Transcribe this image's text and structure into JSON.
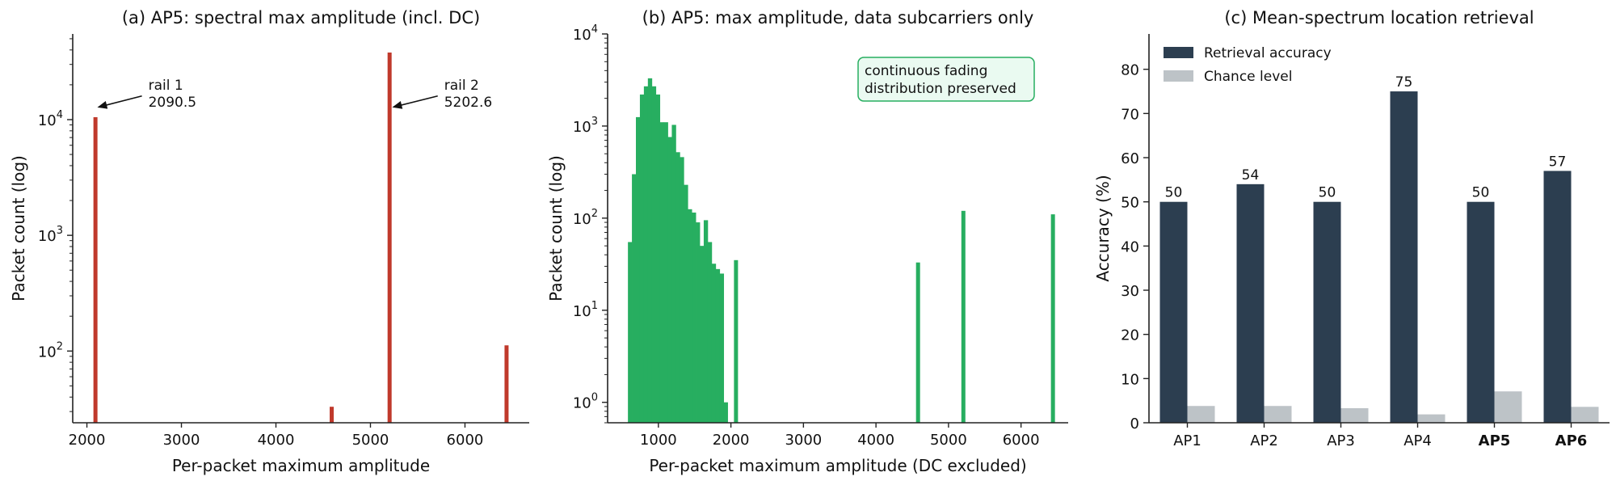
{
  "chart_data": [
    {
      "id": "a",
      "type": "bar",
      "title": "(a) AP5: spectral max amplitude (incl. DC)",
      "xlabel": "Per-packet maximum amplitude",
      "ylabel": "Packet count (log)",
      "yscale": "log",
      "xlim": [
        1850,
        6680
      ],
      "ylim": [
        24,
        55000
      ],
      "xticks": [
        "2000",
        "3000",
        "4000",
        "5000",
        "6000"
      ],
      "xtick_values": [
        2000,
        3000,
        4000,
        5000,
        6000
      ],
      "yticks": [
        100,
        1000,
        10000
      ],
      "ytick_labels": [
        "10",
        "10",
        "10"
      ],
      "ytick_exponents": [
        "2",
        "3",
        "4"
      ],
      "color": "#c0392b",
      "bars": [
        {
          "x": 2090.5,
          "y": 10500
        },
        {
          "x": 4590,
          "y": 33
        },
        {
          "x": 5202.6,
          "y": 38000
        },
        {
          "x": 6440,
          "y": 112
        }
      ],
      "annotations": [
        {
          "lines": [
            "rail 1",
            "2090.5"
          ],
          "text_at": [
            2650,
            15000
          ],
          "arrow_to": [
            2110,
            13500
          ]
        },
        {
          "lines": [
            "rail 2",
            "5202.6"
          ],
          "text_at": [
            5780,
            15000
          ],
          "arrow_to": [
            5230,
            13500
          ]
        }
      ],
      "grid": false
    },
    {
      "id": "b",
      "type": "bar",
      "title": "(b) AP5: max amplitude, data subcarriers only",
      "xlabel": "Per-packet maximum amplitude (DC excluded)",
      "ylabel": "Packet count (log)",
      "yscale": "log",
      "xlim": [
        300,
        6650
      ],
      "ylim": [
        0.6,
        10000
      ],
      "xticks": [
        "1000",
        "2000",
        "3000",
        "4000",
        "5000",
        "6000"
      ],
      "xtick_values": [
        1000,
        2000,
        3000,
        4000,
        5000,
        6000
      ],
      "yticks": [
        1,
        10,
        100,
        1000,
        10000
      ],
      "ytick_labels": [
        "10",
        "10",
        "10",
        "10",
        "10"
      ],
      "ytick_exponents": [
        "0",
        "1",
        "2",
        "3",
        "4"
      ],
      "color": "#27ae60",
      "histogram": {
        "bin_start": 580,
        "bin_width": 55,
        "counts": [
          55,
          300,
          1250,
          2200,
          2700,
          3300,
          2700,
          2200,
          1100,
          1100,
          760,
          1030,
          520,
          460,
          230,
          125,
          115,
          90,
          50,
          95,
          55,
          32,
          28,
          25,
          1
        ]
      },
      "spikes": [
        {
          "x": 2070,
          "y": 35
        },
        {
          "x": 4580,
          "y": 33
        },
        {
          "x": 5205,
          "y": 120
        },
        {
          "x": 6440,
          "y": 110
        }
      ],
      "annotation": {
        "lines": [
          "continuous fading",
          "distribution preserved"
        ],
        "background": "#eafaf1",
        "border": "#27ae60"
      },
      "grid": false
    },
    {
      "id": "c",
      "type": "bar",
      "title": "(c) Mean-spectrum location retrieval",
      "xlabel": "",
      "ylabel": "Accuracy (%)",
      "ylim": [
        0,
        88
      ],
      "yticks": [
        0,
        10,
        20,
        30,
        40,
        50,
        60,
        70,
        80
      ],
      "categories": [
        "AP1",
        "AP2",
        "AP3",
        "AP4",
        "AP5",
        "AP6"
      ],
      "highlight_categories": [
        "AP5",
        "AP6"
      ],
      "highlight_color": "#c0392b",
      "series": [
        {
          "name": "Retrieval accuracy",
          "color": "#2c3e50",
          "values": [
            50,
            54,
            50,
            75,
            50,
            57
          ],
          "value_labels": [
            "50",
            "54",
            "50",
            "75",
            "50",
            "57"
          ]
        },
        {
          "name": "Chance level",
          "color": "#bdc3c7",
          "values": [
            3.8,
            3.8,
            3.3,
            1.9,
            7.1,
            3.6
          ]
        }
      ],
      "legend": "top-left",
      "grid": false
    }
  ]
}
